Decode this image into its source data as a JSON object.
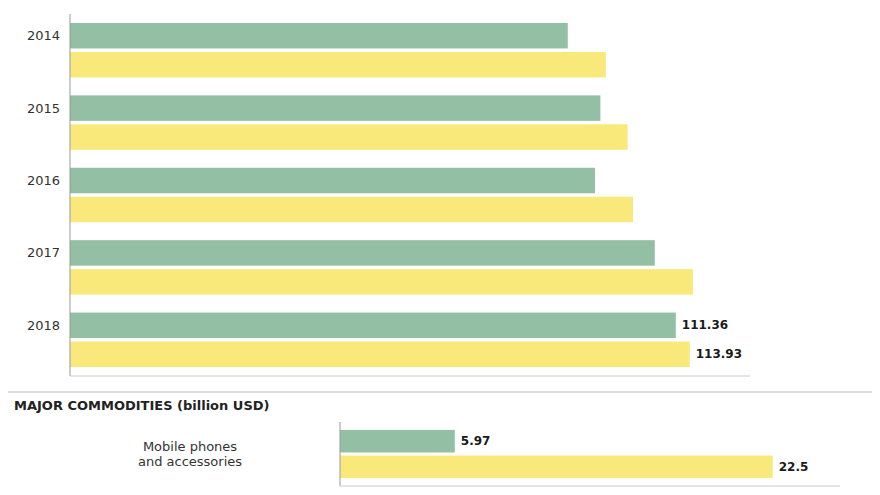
{
  "chart_data": [
    {
      "type": "bar",
      "orientation": "horizontal",
      "categories": [
        "2014",
        "2015",
        "2016",
        "2017",
        "2018"
      ],
      "series": [
        {
          "color": "#F9E87A",
          "values": [
            98.5,
            102.5,
            103.5,
            114.5,
            113.93
          ],
          "value_labels": [
            null,
            null,
            null,
            null,
            "113.93"
          ]
        },
        {
          "color": "#93BFA5",
          "values": [
            91.5,
            97.5,
            96.5,
            107.5,
            111.36
          ],
          "value_labels": [
            null,
            null,
            null,
            null,
            "111.36"
          ]
        }
      ],
      "xlim": [
        0,
        125
      ],
      "xticks": [],
      "tick_labels": "y"
    },
    {
      "type": "bar",
      "orientation": "horizontal",
      "title": "MAJOR COMMODITIES (billion USD)",
      "categories": [
        "Mobile phones\nand accessories"
      ],
      "series": [
        {
          "color": "#F9E87A",
          "values": [
            22.5
          ]
        },
        {
          "color": "#93BFA5",
          "values": [
            5.97
          ]
        }
      ],
      "xlim": [
        0,
        26
      ],
      "xticks": [],
      "data_labels": true,
      "tick_labels": "y"
    }
  ]
}
